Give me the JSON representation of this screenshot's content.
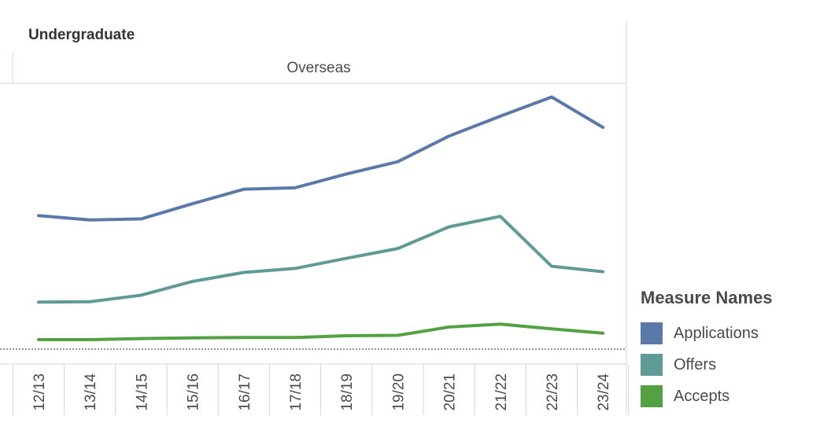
{
  "row_title": "Undergraduate",
  "legend": {
    "title": "Measure Names",
    "items": [
      {
        "label": "Applications",
        "color": "#5b79a8"
      },
      {
        "label": "Offers",
        "color": "#5f9a96"
      },
      {
        "label": "Accepts",
        "color": "#53a143"
      }
    ]
  },
  "chart_data": {
    "type": "line",
    "panel_header": "Overseas",
    "categories": [
      "12/13",
      "13/14",
      "14/15",
      "15/16",
      "16/17",
      "17/18",
      "18/19",
      "19/20",
      "20/21",
      "21/22",
      "22/23",
      "23/24"
    ],
    "series": [
      {
        "name": "Applications",
        "color": "#5b79a8",
        "values": [
          36.9,
          35.7,
          36.0,
          40.2,
          44.2,
          44.6,
          48.4,
          51.8,
          58.9,
          64.4,
          69.7,
          61.3
        ]
      },
      {
        "name": "Offers",
        "color": "#5f9a96",
        "values": [
          13.0,
          13.1,
          14.9,
          18.7,
          21.2,
          22.3,
          25.1,
          27.8,
          33.8,
          36.7,
          22.9,
          21.4
        ]
      },
      {
        "name": "Accepts",
        "color": "#53a143",
        "values": [
          2.6,
          2.6,
          2.9,
          3.1,
          3.2,
          3.2,
          3.7,
          3.8,
          6.1,
          6.9,
          5.6,
          4.4
        ]
      }
    ],
    "ylim": [
      0,
      80
    ],
    "baseline_reference": 0,
    "xlabel": "",
    "ylabel": "",
    "grid": false,
    "legend_position": "right"
  }
}
